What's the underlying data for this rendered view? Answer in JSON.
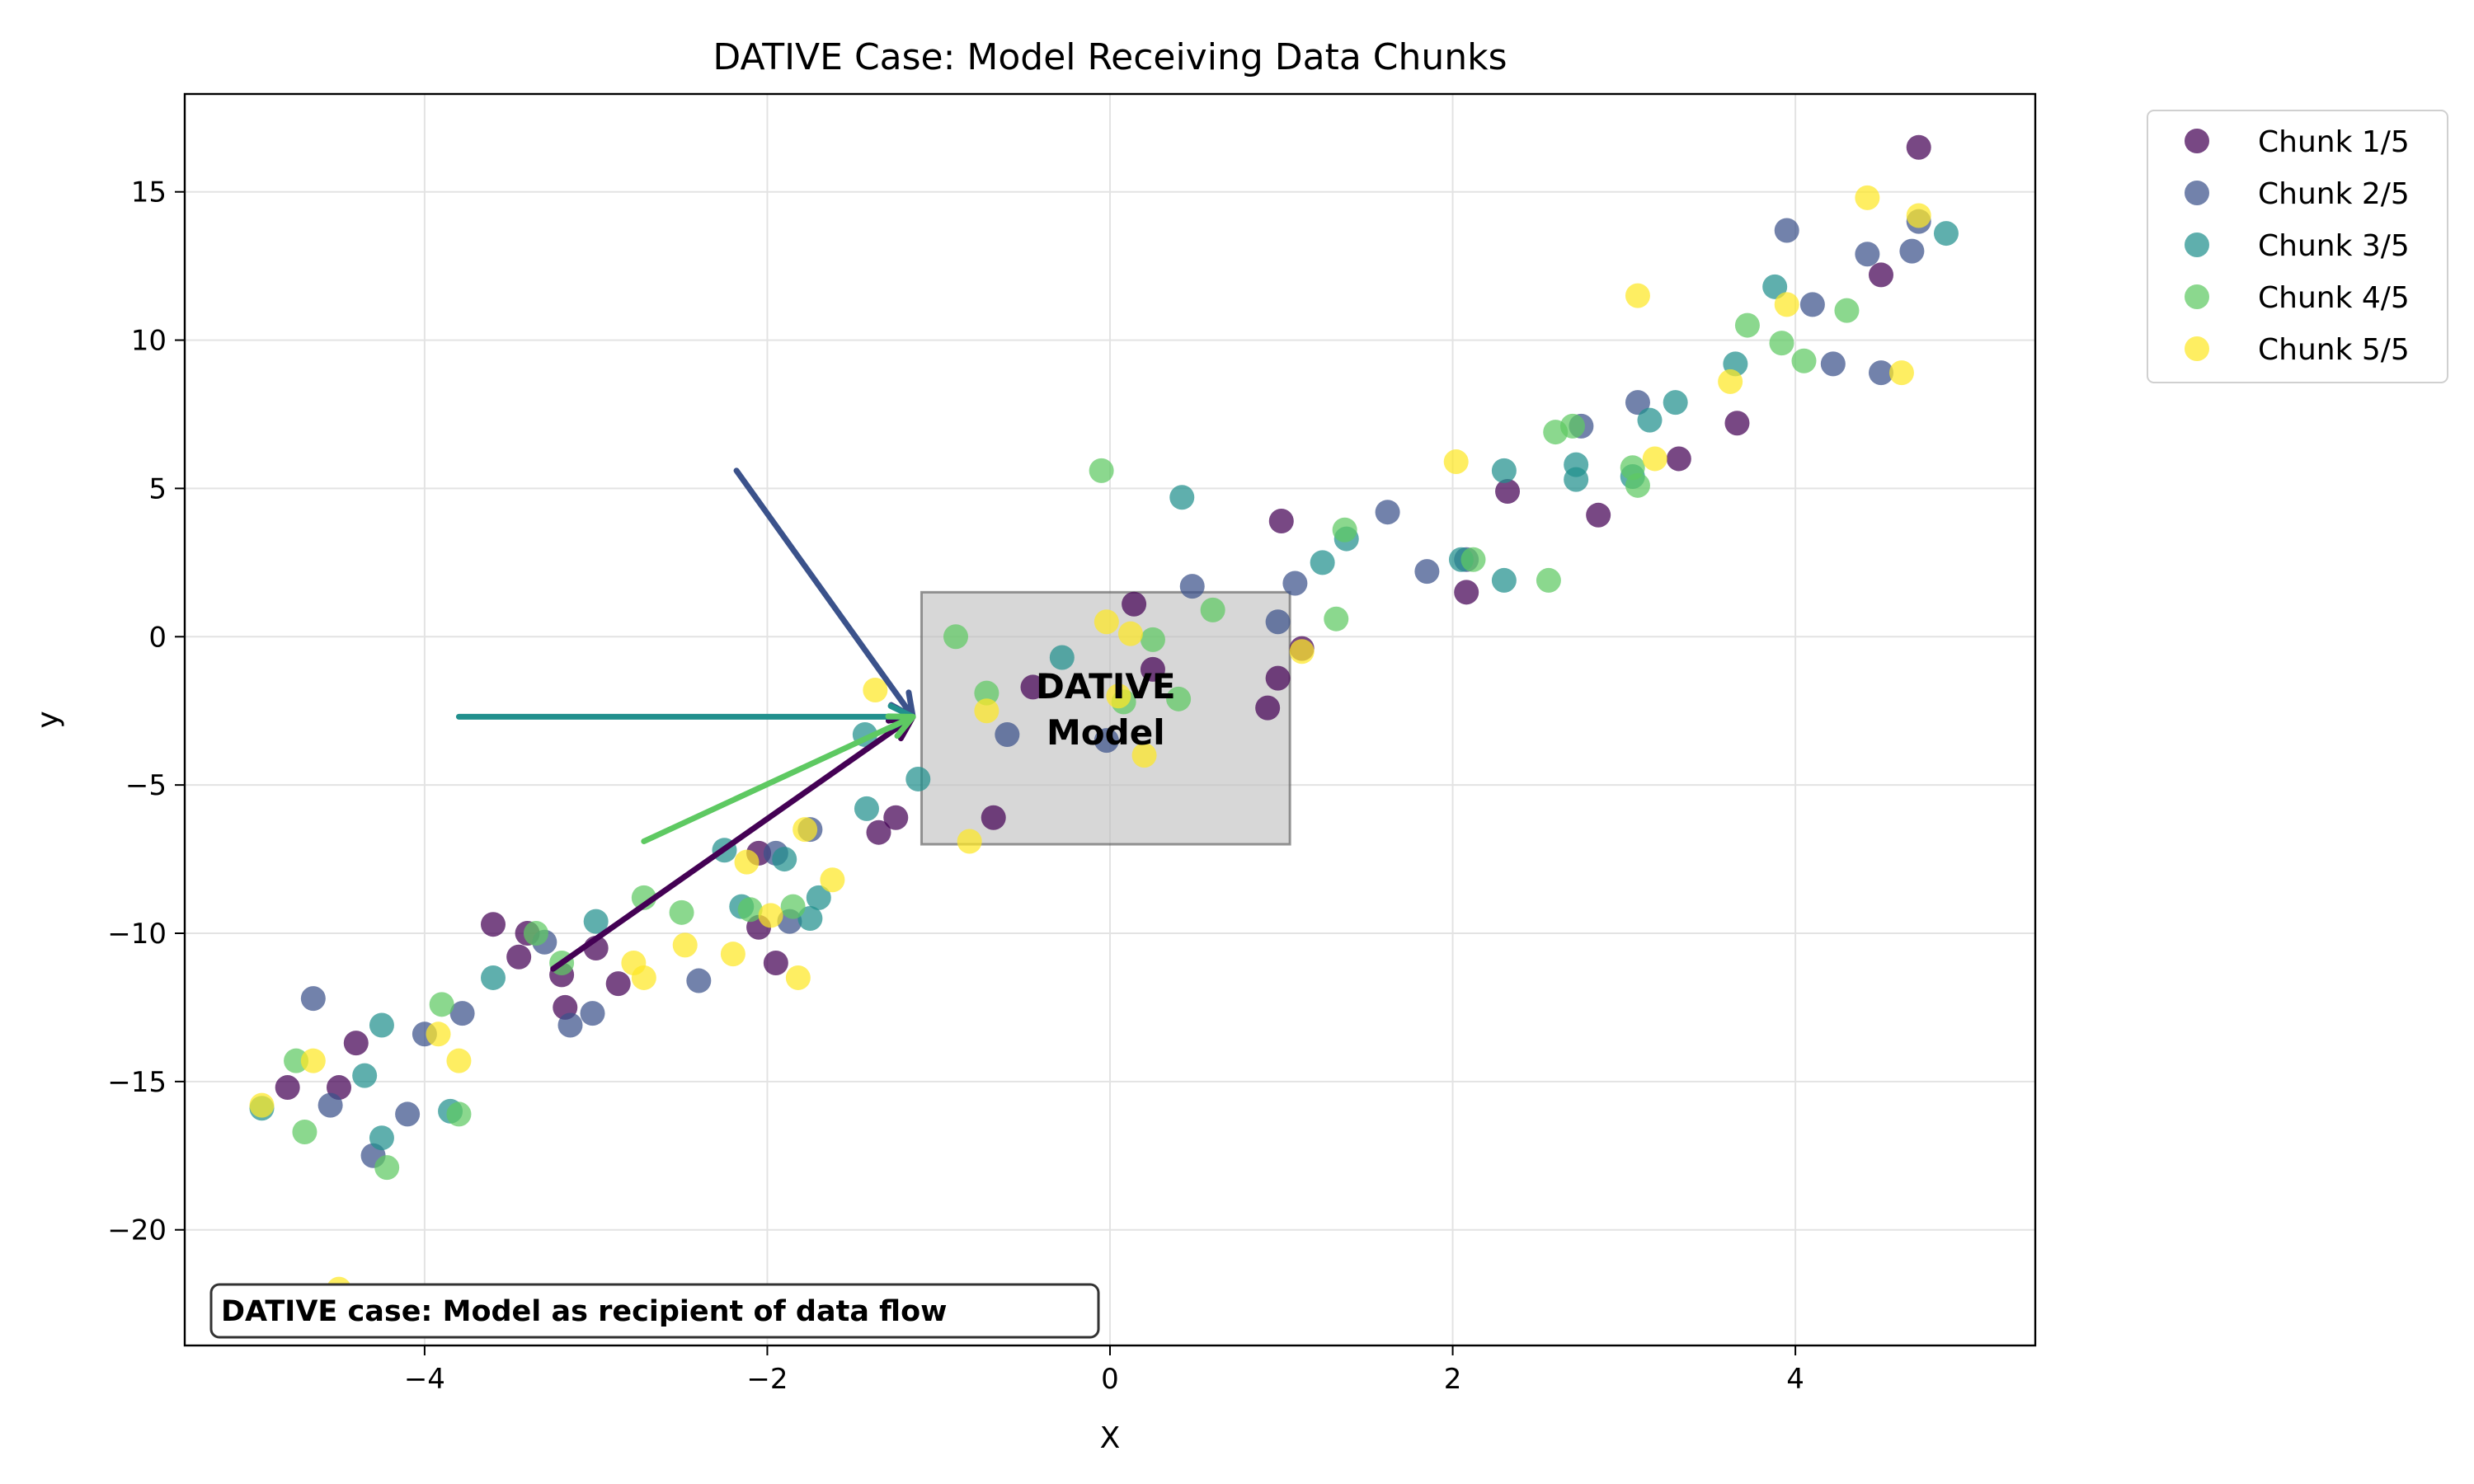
{
  "chart_data": {
    "type": "scatter",
    "title": "DATIVE Case: Model Receiving Data Chunks",
    "xlabel": "X",
    "ylabel": "y",
    "xlim": [
      -5.4,
      5.4
    ],
    "ylim": [
      -23.9,
      18.3
    ],
    "xticks": [
      -4,
      -2,
      0,
      2,
      4
    ],
    "yticks": [
      -20,
      -15,
      -10,
      -5,
      0,
      5,
      10,
      15
    ],
    "xtick_labels": [
      "−4",
      "−2",
      "0",
      "2",
      "4"
    ],
    "ytick_labels": [
      "−20",
      "−15",
      "−10",
      "−5",
      "0",
      "5",
      "10",
      "15"
    ],
    "grid": true,
    "legend_position": "outside-top-right",
    "series": [
      {
        "name": "Chunk 1/5",
        "color": "#440154",
        "points": [
          [
            -4.8,
            -15.2
          ],
          [
            -4.5,
            -15.2
          ],
          [
            -4.4,
            -13.7
          ],
          [
            -3.6,
            -9.7
          ],
          [
            -3.45,
            -10.8
          ],
          [
            -3.4,
            -10.0
          ],
          [
            -3.2,
            -11.4
          ],
          [
            -3.18,
            -12.5
          ],
          [
            -3.0,
            -10.5
          ],
          [
            -2.87,
            -11.7
          ],
          [
            -2.05,
            -9.8
          ],
          [
            -2.05,
            -7.3
          ],
          [
            -1.95,
            -11.0
          ],
          [
            -1.35,
            -6.6
          ],
          [
            -1.25,
            -6.1
          ],
          [
            -0.68,
            -6.1
          ],
          [
            0.14,
            1.1
          ],
          [
            0.25,
            -1.1
          ],
          [
            0.92,
            -2.4
          ],
          [
            0.98,
            -1.4
          ],
          [
            1.0,
            3.9
          ],
          [
            1.12,
            -0.4
          ],
          [
            2.08,
            1.5
          ],
          [
            2.32,
            4.9
          ],
          [
            2.85,
            4.1
          ],
          [
            3.32,
            6.0
          ],
          [
            3.66,
            7.2
          ],
          [
            4.5,
            12.2
          ],
          [
            4.72,
            16.5
          ],
          [
            -0.45,
            -1.7
          ]
        ]
      },
      {
        "name": "Chunk 2/5",
        "color": "#3b528b",
        "points": [
          [
            -4.65,
            -12.2
          ],
          [
            -4.55,
            -15.8
          ],
          [
            -4.3,
            -17.5
          ],
          [
            -4.1,
            -16.1
          ],
          [
            -4.0,
            -13.4
          ],
          [
            -3.78,
            -12.7
          ],
          [
            -3.3,
            -10.3
          ],
          [
            -3.15,
            -13.1
          ],
          [
            -3.02,
            -12.7
          ],
          [
            -2.4,
            -11.6
          ],
          [
            -1.95,
            -7.3
          ],
          [
            -1.87,
            -9.6
          ],
          [
            -1.75,
            -6.5
          ],
          [
            -0.6,
            -3.3
          ],
          [
            -0.02,
            -3.5
          ],
          [
            0.48,
            1.7
          ],
          [
            0.98,
            0.5
          ],
          [
            1.08,
            1.8
          ],
          [
            1.62,
            4.2
          ],
          [
            1.85,
            2.2
          ],
          [
            2.08,
            2.6
          ],
          [
            2.75,
            7.1
          ],
          [
            3.08,
            7.9
          ],
          [
            3.95,
            13.7
          ],
          [
            4.1,
            11.2
          ],
          [
            4.22,
            9.2
          ],
          [
            4.42,
            12.9
          ],
          [
            4.5,
            8.9
          ],
          [
            4.68,
            13.0
          ],
          [
            4.72,
            14.0
          ]
        ]
      },
      {
        "name": "Chunk 3/5",
        "color": "#21908d",
        "points": [
          [
            -4.95,
            -15.9
          ],
          [
            -4.35,
            -14.8
          ],
          [
            -4.25,
            -13.1
          ],
          [
            -4.25,
            -16.9
          ],
          [
            -3.85,
            -16.0
          ],
          [
            -3.6,
            -11.5
          ],
          [
            -3.0,
            -9.6
          ],
          [
            -2.25,
            -7.2
          ],
          [
            -2.15,
            -9.1
          ],
          [
            -1.9,
            -7.5
          ],
          [
            -1.75,
            -9.5
          ],
          [
            -1.7,
            -8.8
          ],
          [
            -1.43,
            -3.3
          ],
          [
            -1.42,
            -5.8
          ],
          [
            -1.12,
            -4.8
          ],
          [
            -0.28,
            -0.7
          ],
          [
            0.42,
            4.7
          ],
          [
            1.24,
            2.5
          ],
          [
            1.38,
            3.3
          ],
          [
            2.05,
            2.6
          ],
          [
            2.3,
            1.9
          ],
          [
            2.3,
            5.6
          ],
          [
            2.72,
            5.8
          ],
          [
            2.72,
            5.3
          ],
          [
            3.05,
            5.4
          ],
          [
            3.15,
            7.3
          ],
          [
            3.3,
            7.9
          ],
          [
            3.65,
            9.2
          ],
          [
            3.88,
            11.8
          ],
          [
            4.88,
            13.6
          ]
        ]
      },
      {
        "name": "Chunk 4/5",
        "color": "#5ec962",
        "points": [
          [
            -4.75,
            -14.3
          ],
          [
            -4.7,
            -16.7
          ],
          [
            -4.22,
            -17.9
          ],
          [
            -3.9,
            -12.4
          ],
          [
            -3.8,
            -16.1
          ],
          [
            -3.35,
            -10.0
          ],
          [
            -3.2,
            -11.0
          ],
          [
            -2.72,
            -8.8
          ],
          [
            -2.5,
            -9.3
          ],
          [
            -2.1,
            -9.2
          ],
          [
            -1.85,
            -9.1
          ],
          [
            -0.9,
            0.0
          ],
          [
            -0.72,
            -1.9
          ],
          [
            -0.05,
            5.6
          ],
          [
            0.08,
            -2.2
          ],
          [
            0.25,
            -0.1
          ],
          [
            0.4,
            -2.1
          ],
          [
            0.6,
            0.9
          ],
          [
            1.32,
            0.6
          ],
          [
            1.37,
            3.6
          ],
          [
            2.12,
            2.6
          ],
          [
            2.56,
            1.9
          ],
          [
            2.6,
            6.9
          ],
          [
            2.7,
            7.1
          ],
          [
            3.05,
            5.7
          ],
          [
            3.08,
            5.1
          ],
          [
            3.72,
            10.5
          ],
          [
            3.92,
            9.9
          ],
          [
            4.05,
            9.3
          ],
          [
            4.3,
            11.0
          ]
        ]
      },
      {
        "name": "Chunk 5/5",
        "color": "#fde725",
        "points": [
          [
            -4.95,
            -15.8
          ],
          [
            -4.65,
            -14.3
          ],
          [
            -4.5,
            -22.0
          ],
          [
            -3.92,
            -13.4
          ],
          [
            -3.8,
            -14.3
          ],
          [
            -2.78,
            -11.0
          ],
          [
            -2.72,
            -11.5
          ],
          [
            -2.48,
            -10.4
          ],
          [
            -2.2,
            -10.7
          ],
          [
            -2.12,
            -7.6
          ],
          [
            -1.98,
            -9.4
          ],
          [
            -1.82,
            -11.5
          ],
          [
            -1.78,
            -6.5
          ],
          [
            -1.62,
            -8.2
          ],
          [
            -1.37,
            -1.8
          ],
          [
            -0.82,
            -6.9
          ],
          [
            -0.72,
            -2.5
          ],
          [
            -0.02,
            0.5
          ],
          [
            0.12,
            0.1
          ],
          [
            0.2,
            -4.0
          ],
          [
            1.12,
            -0.5
          ],
          [
            2.02,
            5.9
          ],
          [
            3.08,
            11.5
          ],
          [
            3.18,
            6.0
          ],
          [
            3.62,
            8.6
          ],
          [
            3.95,
            11.2
          ],
          [
            4.42,
            14.8
          ],
          [
            4.62,
            8.9
          ],
          [
            4.72,
            14.2
          ],
          [
            0.05,
            -2.0
          ]
        ]
      }
    ],
    "model_box": {
      "x0": -1.1,
      "x1": 1.05,
      "y0": -7.0,
      "y1": 1.5,
      "fill": "#bfbfbf",
      "label_lines": [
        "DATIVE",
        "Model"
      ]
    },
    "arrows": [
      {
        "from": [
          -3.25,
          -11.2
        ],
        "to": [
          -1.15,
          -2.7
        ],
        "color": "#440154"
      },
      {
        "from": [
          -2.18,
          5.6
        ],
        "to": [
          -1.15,
          -2.7
        ],
        "color": "#3b528b"
      },
      {
        "from": [
          -3.8,
          -2.7
        ],
        "to": [
          -1.15,
          -2.7
        ],
        "color": "#21908d"
      },
      {
        "from": [
          -2.72,
          -6.9
        ],
        "to": [
          -1.15,
          -2.7
        ],
        "color": "#5ec962"
      }
    ],
    "annotation": "DATIVE case: Model as recipient of data flow"
  }
}
